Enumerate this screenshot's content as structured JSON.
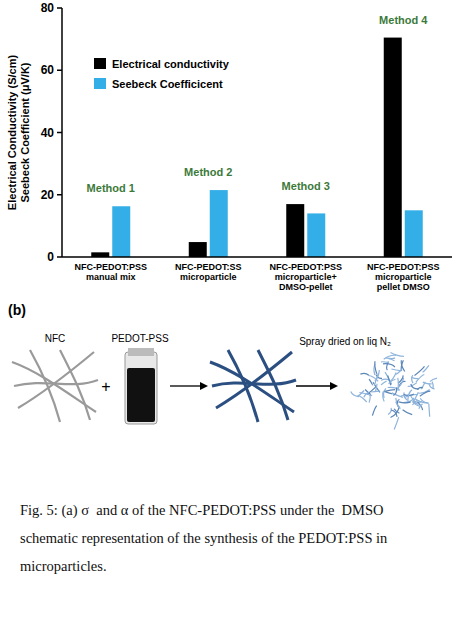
{
  "chart_data": {
    "type": "bar",
    "categories": [
      "NFC-PEDOT:PSS manual mix",
      "NFC-PEDOT:SS microparticle",
      "NFC-PEDOT:PSS microparticle+ DMSO-pellet",
      "NFC-PEDOT:PSS microparticle pellet DMSO"
    ],
    "series": [
      {
        "name": "Electrical conductivity",
        "color": "#000000",
        "values": [
          1.5,
          4.8,
          17,
          70.5
        ]
      },
      {
        "name": "Seebeck Coefficicent",
        "color": "#33aee6",
        "values": [
          16.3,
          21.5,
          14,
          15
        ]
      }
    ],
    "y_label": [
      "Electrical Conductivity (S/cm)",
      "Seebeck Coefficient (μV/K)"
    ],
    "annotations": [
      "Method 1",
      "Method 2",
      "Method 3",
      "Method 4"
    ],
    "ylim": [
      0,
      80
    ],
    "yticks": [
      0,
      20,
      40,
      60,
      80
    ],
    "grid": false,
    "legend": "upper left"
  },
  "schematic": {
    "panel_label": "(b)",
    "components": [
      "NFC",
      "PEDOT-PSS"
    ],
    "operator": "+",
    "step_label": "Spray dried on liq N₂"
  },
  "caption": {
    "lines": [
      "Fig. 5: (a) σ  and α of the NFC-PEDOT:PSS under the  DMSO",
      "schematic representation of the synthesis of the PEDOT:PSS in",
      "microparticles."
    ]
  }
}
